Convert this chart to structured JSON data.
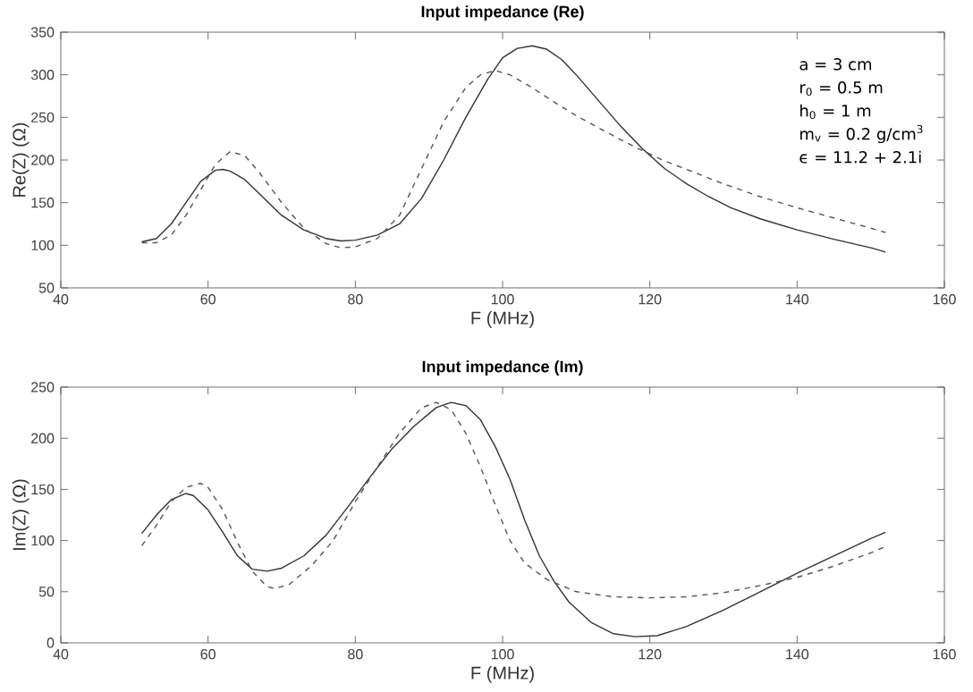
{
  "chart_data": [
    {
      "type": "line",
      "title": "Input impedance (Re)",
      "xlabel": "F (MHz)",
      "ylabel": "Re(Z) (Ω)",
      "xlim": [
        40,
        160
      ],
      "ylim": [
        50,
        350
      ],
      "xticks": [
        40,
        60,
        80,
        100,
        120,
        140,
        160
      ],
      "yticks": [
        50,
        100,
        150,
        200,
        250,
        300,
        350
      ],
      "annotations": [
        "a = 3 cm",
        "r$_{0}$ = 0.5 m",
        "h$_{0}$ = 1 m",
        "m$_{v}$ = 0.2 g/cm$^{3}$",
        "ϵ = 11.2 + 2.1i"
      ],
      "series": [
        {
          "color": "#333333",
          "line_style": "solid",
          "x": [
            51,
            53,
            55,
            57,
            59,
            61,
            62,
            63,
            65,
            67,
            70,
            73,
            76,
            78,
            80,
            83,
            86,
            89,
            92,
            95,
            98,
            100,
            102,
            104,
            106,
            108,
            110,
            113,
            116,
            119,
            122,
            125,
            128,
            131,
            135,
            140,
            145,
            150,
            152
          ],
          "values": [
            104,
            108,
            125,
            150,
            175,
            188,
            189,
            187,
            177,
            160,
            135,
            118,
            108,
            105,
            106,
            112,
            125,
            155,
            200,
            250,
            295,
            320,
            331,
            334,
            330,
            318,
            300,
            270,
            240,
            213,
            190,
            172,
            157,
            144,
            131,
            118,
            107,
            97,
            92
          ]
        },
        {
          "color": "#555555",
          "line_style": "dashed",
          "x": [
            51,
            53,
            55,
            57,
            59,
            61,
            63,
            65,
            67,
            70,
            73,
            76,
            78,
            80,
            83,
            86,
            89,
            92,
            95,
            97,
            99,
            101,
            104,
            107,
            110,
            113,
            116,
            119,
            122,
            125,
            130,
            135,
            140,
            145,
            150,
            152
          ],
          "values": [
            103,
            103,
            112,
            135,
            165,
            195,
            210,
            205,
            185,
            150,
            120,
            102,
            97,
            98,
            108,
            135,
            190,
            245,
            285,
            300,
            305,
            300,
            285,
            268,
            252,
            238,
            224,
            211,
            199,
            189,
            172,
            157,
            144,
            132,
            120,
            115
          ]
        }
      ]
    },
    {
      "type": "line",
      "title": "Input impedance (Im)",
      "xlabel": "F (MHz)",
      "ylabel": "Im(Z) (Ω)",
      "xlim": [
        40,
        160
      ],
      "ylim": [
        0,
        250
      ],
      "xticks": [
        40,
        60,
        80,
        100,
        120,
        140,
        160
      ],
      "yticks": [
        0,
        50,
        100,
        150,
        200,
        250
      ],
      "series": [
        {
          "color": "#333333",
          "line_style": "solid",
          "x": [
            51,
            53,
            55,
            57,
            58,
            60,
            62,
            64,
            66,
            68,
            70,
            73,
            76,
            79,
            82,
            85,
            88,
            91,
            93,
            95,
            97,
            99,
            101,
            103,
            105,
            107,
            109,
            112,
            115,
            118,
            121,
            125,
            130,
            135,
            140,
            145,
            150,
            152
          ],
          "values": [
            107,
            125,
            140,
            146,
            144,
            130,
            108,
            85,
            72,
            70,
            73,
            85,
            105,
            133,
            162,
            190,
            212,
            230,
            235,
            232,
            218,
            192,
            160,
            120,
            85,
            60,
            40,
            20,
            9,
            6,
            7,
            16,
            32,
            50,
            68,
            85,
            102,
            108
          ]
        },
        {
          "color": "#555555",
          "line_style": "dashed",
          "x": [
            51,
            53,
            55,
            57,
            59,
            60,
            62,
            64,
            66,
            68,
            69,
            71,
            74,
            77,
            80,
            83,
            86,
            89,
            91,
            93,
            95,
            97,
            99,
            101,
            103,
            106,
            110,
            115,
            120,
            125,
            130,
            135,
            140,
            145,
            150,
            152
          ],
          "values": [
            95,
            115,
            138,
            152,
            156,
            152,
            130,
            98,
            70,
            55,
            53,
            57,
            75,
            100,
            138,
            172,
            205,
            230,
            235,
            228,
            205,
            172,
            135,
            100,
            78,
            62,
            50,
            45,
            44,
            45,
            49,
            56,
            64,
            75,
            88,
            94
          ]
        }
      ]
    }
  ]
}
